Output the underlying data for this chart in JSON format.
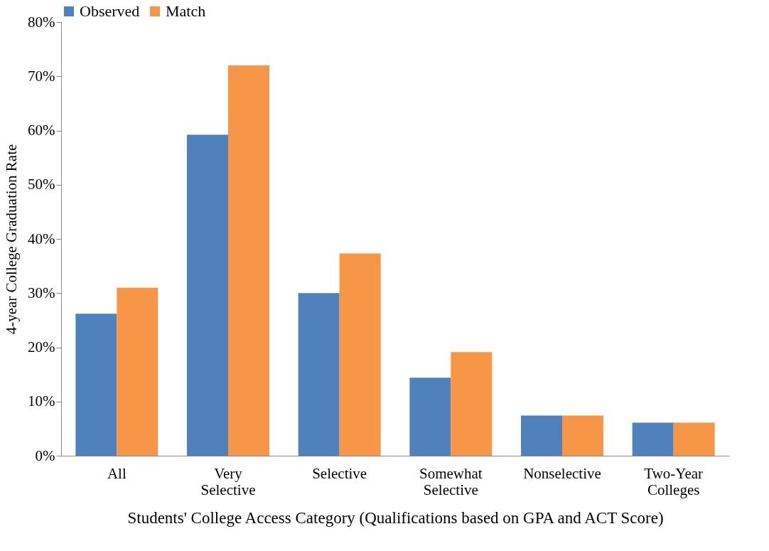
{
  "chart_data": {
    "type": "bar",
    "xlabel": "Students' College Access Category (Qualifications based on GPA and ACT Score)",
    "ylabel": "4-year College Graduation Rate",
    "categories": [
      "All",
      "Very Selective",
      "Selective",
      "Somewhat Selective",
      "Nonselective",
      "Two-Year Colleges"
    ],
    "series": [
      {
        "name": "Observed",
        "color": "#4f81bd",
        "values": [
          26.2,
          59.2,
          30.0,
          14.4,
          7.4,
          6.1
        ]
      },
      {
        "name": "Match",
        "color": "#f79646",
        "values": [
          31.0,
          72.0,
          37.3,
          19.1,
          7.4,
          6.1
        ]
      }
    ],
    "ylim": [
      0,
      80
    ],
    "yticks": [
      {
        "value": 0,
        "label": "0%"
      },
      {
        "value": 10,
        "label": "10%"
      },
      {
        "value": 20,
        "label": "20%"
      },
      {
        "value": 30,
        "label": "30%"
      },
      {
        "value": 40,
        "label": "40%"
      },
      {
        "value": 50,
        "label": "50%"
      },
      {
        "value": 60,
        "label": "60%"
      },
      {
        "value": 70,
        "label": "70%"
      },
      {
        "value": 80,
        "label": "80%"
      }
    ],
    "grid": false,
    "legend": "top"
  }
}
